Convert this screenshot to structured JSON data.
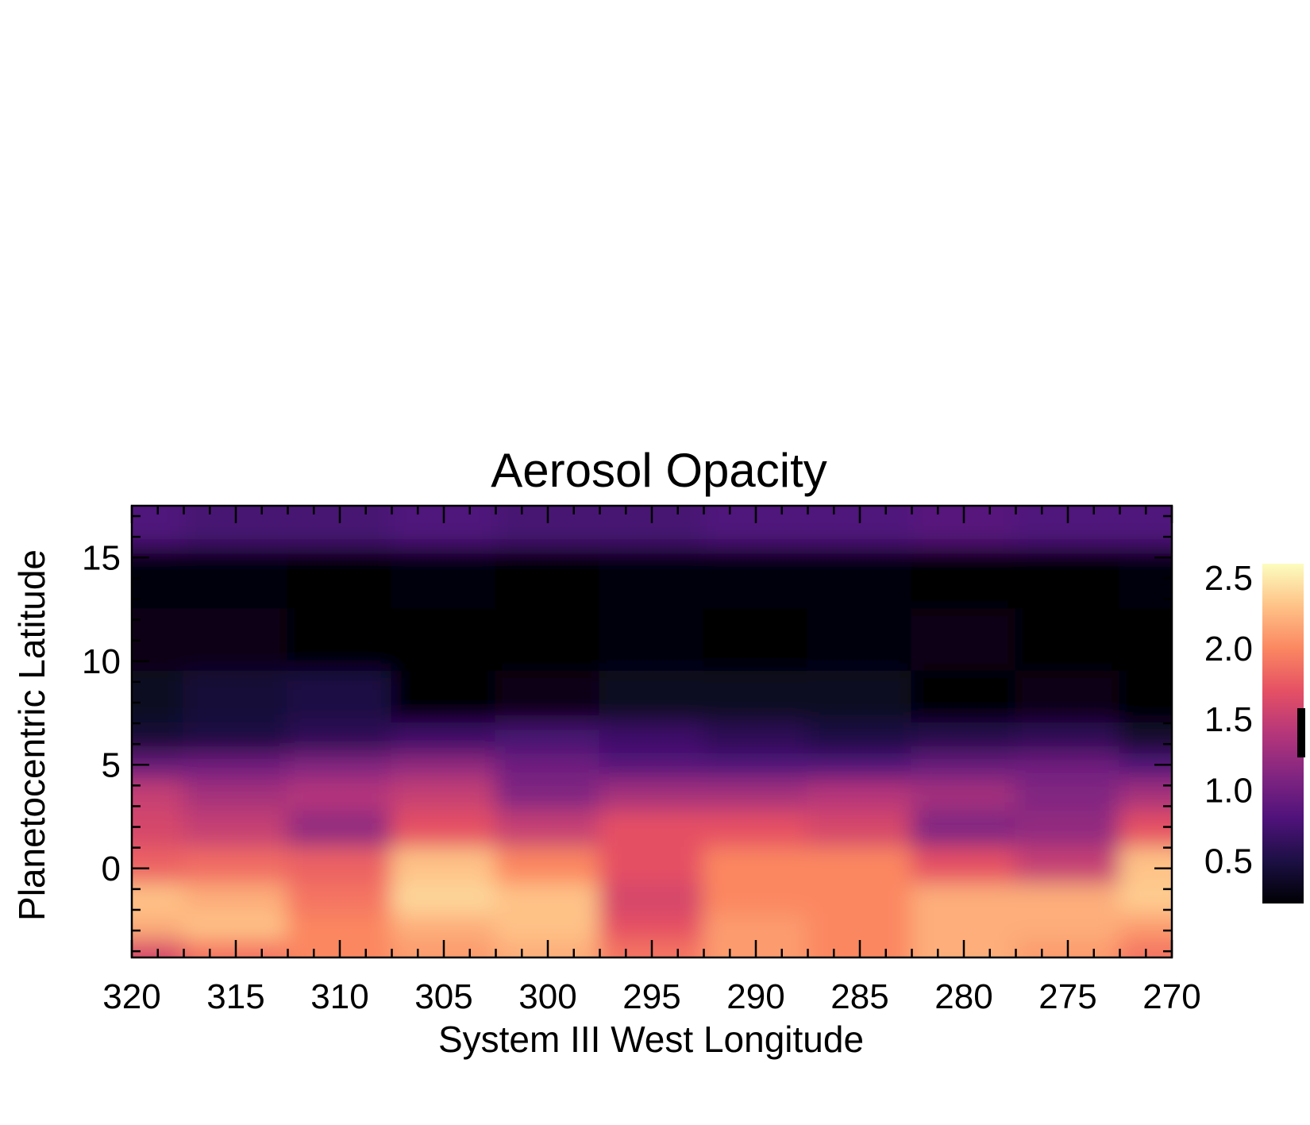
{
  "chart_data": {
    "type": "heatmap",
    "title": "Aerosol Opacity",
    "xlabel": "System III West Longitude",
    "ylabel": "Planetocentric Latitude",
    "xlim": [
      320,
      270
    ],
    "ylim": [
      -4.3,
      17.5
    ],
    "x_ticks": [
      320,
      315,
      310,
      305,
      300,
      295,
      290,
      285,
      280,
      275,
      270
    ],
    "x_tick_labels": [
      "320",
      "315",
      "310",
      "305",
      "300",
      "295",
      "290",
      "285",
      "280",
      "275",
      "270"
    ],
    "y_ticks": [
      0,
      5,
      10,
      15
    ],
    "y_tick_labels": [
      "0",
      "5",
      "10",
      "15"
    ],
    "colorbar": {
      "colormap": "magma",
      "range": [
        0.2,
        2.6
      ],
      "ticks": [
        0.5,
        1.0,
        1.5,
        2.0,
        2.5
      ],
      "tick_labels": [
        "0.5",
        "1.0",
        "1.5",
        "2.0",
        "2.5"
      ]
    },
    "colormap_stops": [
      "#000004",
      "#1c1044",
      "#4f127b",
      "#812581",
      "#b5367a",
      "#e55064",
      "#fb8761",
      "#fec287",
      "#fcfdbf"
    ],
    "latitude_rows": [
      17,
      14,
      11,
      8,
      6,
      5,
      3.5,
      2,
      0,
      -1.5,
      -3,
      -4
    ],
    "longitude_cols": [
      320,
      315,
      310,
      305,
      300,
      295,
      290,
      285,
      280,
      275,
      270
    ],
    "grid": [
      [
        0.8,
        0.75,
        0.75,
        0.8,
        0.75,
        0.75,
        0.8,
        0.8,
        0.85,
        0.8,
        0.8
      ],
      [
        0.25,
        0.25,
        0.15,
        0.25,
        0.2,
        0.25,
        0.25,
        0.25,
        0.2,
        0.2,
        0.25
      ],
      [
        0.3,
        0.3,
        0.2,
        0.2,
        0.2,
        0.25,
        0.2,
        0.25,
        0.3,
        0.2,
        0.2
      ],
      [
        0.35,
        0.45,
        0.5,
        0.2,
        0.3,
        0.35,
        0.35,
        0.35,
        0.2,
        0.3,
        0.2
      ],
      [
        0.45,
        0.5,
        0.6,
        0.7,
        0.75,
        0.7,
        0.6,
        0.5,
        0.55,
        0.6,
        0.4
      ],
      [
        0.95,
        1.0,
        1.1,
        1.2,
        1.0,
        0.85,
        0.8,
        0.8,
        0.95,
        1.0,
        0.8
      ],
      [
        1.5,
        1.3,
        1.4,
        1.5,
        1.1,
        1.3,
        1.3,
        1.4,
        1.3,
        1.1,
        1.3
      ],
      [
        1.6,
        1.5,
        1.2,
        1.7,
        1.5,
        1.7,
        1.7,
        1.6,
        1.1,
        1.2,
        1.7
      ],
      [
        1.8,
        1.85,
        1.8,
        2.3,
        2.0,
        1.7,
        2.0,
        2.0,
        1.7,
        1.5,
        2.3
      ],
      [
        2.3,
        2.2,
        1.9,
        2.4,
        2.3,
        1.6,
        2.0,
        2.0,
        2.2,
        2.2,
        2.35
      ],
      [
        2.2,
        2.3,
        2.0,
        2.2,
        2.3,
        1.7,
        2.1,
        2.0,
        2.2,
        2.2,
        2.1
      ],
      [
        1.6,
        1.9,
        2.0,
        2.1,
        2.2,
        1.9,
        2.1,
        2.0,
        2.2,
        2.1,
        1.9
      ]
    ]
  }
}
